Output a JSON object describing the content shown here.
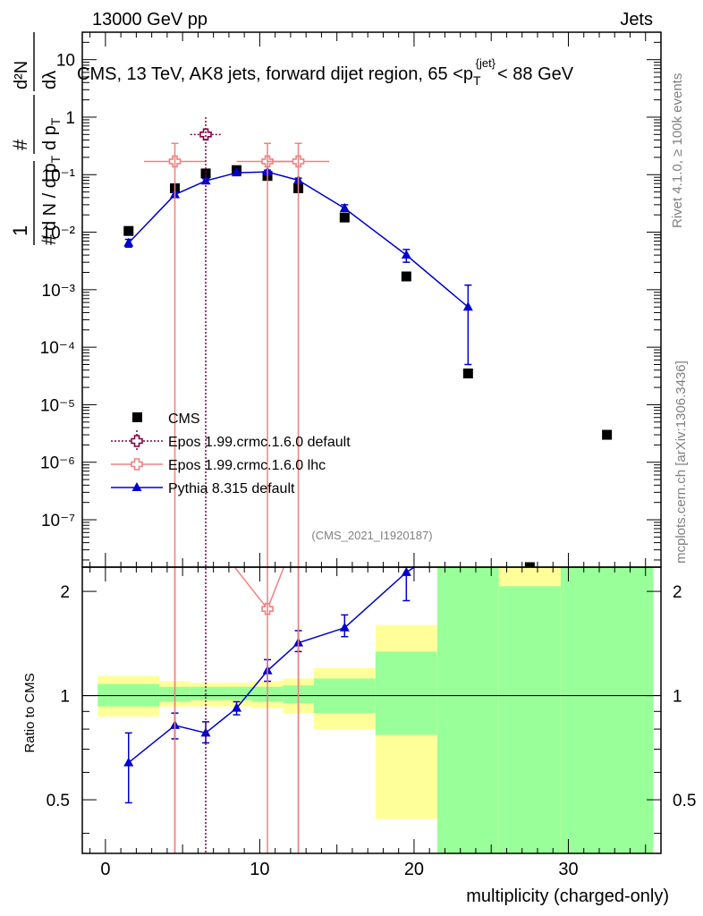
{
  "header": {
    "left": "13000 GeV pp",
    "right": "Jets",
    "title": "CMS, 13 TeV, AK8 jets, forward dijet region, 65 <p",
    "title_sub": "T",
    "title_sup": "{jet}",
    "title_end": "< 88 GeV",
    "side_top": "Rivet 4.1.0, ≥ 100k events",
    "side_bottom": "mcplots.cern.ch [arXiv:1306.3436]",
    "analysis": "(CMS_2021_I1920187)"
  },
  "ylabel_main": {
    "frac_num": "1",
    "frac_den_hash": "#",
    "frac_den_dN": "d N / d p",
    "frac_den_sub": "T",
    "hash1": "#",
    "d2N": "d²N",
    "dpt": "d p",
    "dpt_sub": "T",
    "dlambda": "dλ",
    "hash2": "#"
  },
  "ratio_label": "Ratio to CMS",
  "xlabel": "multiplicity (charged-only)",
  "legend": [
    {
      "label": "CMS",
      "color": "#000000"
    },
    {
      "label": "Epos 1.99.crmc.1.6.0 default",
      "color": "#800040"
    },
    {
      "label": "Epos 1.99.crmc.1.6.0 lhc",
      "color": "#f08080"
    },
    {
      "label": "Pythia 8.315 default",
      "color": "#0000cc"
    }
  ],
  "chart_data": {
    "type": "scatter",
    "x_range": [
      -1.5,
      36
    ],
    "y_range_log": [
      1.5e-08,
      30
    ],
    "ratio_range": [
      0.35,
      2.35
    ],
    "x_ticks": [
      "0",
      "10",
      "20",
      "30"
    ],
    "y_ticks": [
      "10",
      "1",
      "10⁻¹",
      "10⁻²",
      "10⁻³",
      "10⁻⁴",
      "10⁻⁵",
      "10⁻⁶",
      "10⁻⁷"
    ],
    "ratio_ticks": [
      "0.5",
      "1",
      "2"
    ],
    "cms": {
      "x": [
        1.5,
        4.5,
        6.5,
        8.5,
        10.5,
        12.5,
        15.5,
        19.5,
        23.5,
        27.5,
        32.5
      ],
      "y": [
        0.0105,
        0.058,
        0.105,
        0.12,
        0.095,
        0.058,
        0.018,
        0.0017,
        3.5e-05,
        1.5e-08,
        3e-06
      ]
    },
    "band": [
      {
        "xlo": -0.5,
        "xhi": 3.5,
        "g_lo": 0.93,
        "g_hi": 1.08,
        "y_lo": 0.87,
        "y_hi": 1.14
      },
      {
        "xlo": 3.5,
        "xhi": 5.5,
        "g_lo": 0.96,
        "g_hi": 1.06,
        "y_lo": 0.93,
        "y_hi": 1.1
      },
      {
        "xlo": 5.5,
        "xhi": 9.5,
        "g_lo": 0.97,
        "g_hi": 1.06,
        "y_lo": 0.93,
        "y_hi": 1.09
      },
      {
        "xlo": 9.5,
        "xhi": 11.5,
        "g_lo": 0.96,
        "g_hi": 1.06,
        "y_lo": 0.92,
        "y_hi": 1.1
      },
      {
        "xlo": 11.5,
        "xhi": 13.5,
        "g_lo": 0.95,
        "g_hi": 1.07,
        "y_lo": 0.89,
        "y_hi": 1.12
      },
      {
        "xlo": 13.5,
        "xhi": 17.5,
        "g_lo": 0.89,
        "g_hi": 1.12,
        "y_lo": 0.8,
        "y_hi": 1.2
      },
      {
        "xlo": 17.5,
        "xhi": 21.5,
        "g_lo": 0.77,
        "g_hi": 1.34,
        "y_lo": 0.44,
        "y_hi": 1.6
      },
      {
        "xlo": 21.5,
        "xhi": 25.5,
        "g_lo": 0.35,
        "g_hi": 2.35,
        "y_lo": 0.35,
        "y_hi": 2.35
      },
      {
        "xlo": 25.5,
        "xhi": 29.5,
        "g_lo": 0.35,
        "g_hi": 2.07,
        "y_lo": 0.35,
        "y_hi": 2.35
      },
      {
        "xlo": 29.5,
        "xhi": 35.5,
        "g_lo": 0.35,
        "g_hi": 2.35,
        "y_lo": 0.35,
        "y_hi": 2.35
      }
    ],
    "series": [
      {
        "name": "Epos 1.99.crmc.1.6.0 default",
        "color": "#800040",
        "style": "dotted",
        "marker": "cross",
        "x": [
          6.5
        ],
        "y": [
          0.5
        ],
        "xerr": [
          1.0
        ],
        "ylo": [
          1e-12
        ],
        "yhi": [
          1.0
        ]
      },
      {
        "name": "Epos 1.99.crmc.1.6.0 lhc",
        "color": "#f08080",
        "style": "solid",
        "marker": "cross",
        "x": [
          4.5,
          10.5,
          12.5
        ],
        "y": [
          0.17,
          0.17,
          0.17
        ],
        "xerr": [
          2.0,
          2.0,
          2.0
        ],
        "ylo": [
          1e-12,
          1e-12,
          1e-12
        ],
        "yhi": [
          0.35,
          0.35,
          0.35
        ],
        "ratio_x": [
          6.5,
          10.5,
          12.5
        ],
        "ratio_y": [
          3.0,
          1.78,
          3.0
        ]
      },
      {
        "name": "Pythia 8.315 default",
        "color": "#0000cc",
        "style": "solid",
        "marker": "triangle",
        "x": [
          1.5,
          4.5,
          6.5,
          8.5,
          10.5,
          12.5,
          15.5,
          19.5,
          23.5
        ],
        "y": [
          0.0065,
          0.045,
          0.078,
          0.108,
          0.112,
          0.08,
          0.026,
          0.004,
          0.0005
        ],
        "ylo": [
          0.0055,
          0.04,
          0.072,
          0.1,
          0.104,
          0.074,
          0.023,
          0.003,
          5e-05
        ],
        "yhi": [
          0.0075,
          0.05,
          0.085,
          0.115,
          0.12,
          0.087,
          0.03,
          0.005,
          0.0012
        ],
        "ratio": [
          0.64,
          0.82,
          0.78,
          0.92,
          1.18,
          1.42,
          1.57,
          2.27,
          null
        ],
        "ratio_lo": [
          0.49,
          0.75,
          0.73,
          0.88,
          1.1,
          1.34,
          1.48,
          1.88,
          null
        ],
        "ratio_hi": [
          0.78,
          0.89,
          0.84,
          0.96,
          1.27,
          1.54,
          1.71,
          2.35,
          null
        ]
      }
    ]
  }
}
